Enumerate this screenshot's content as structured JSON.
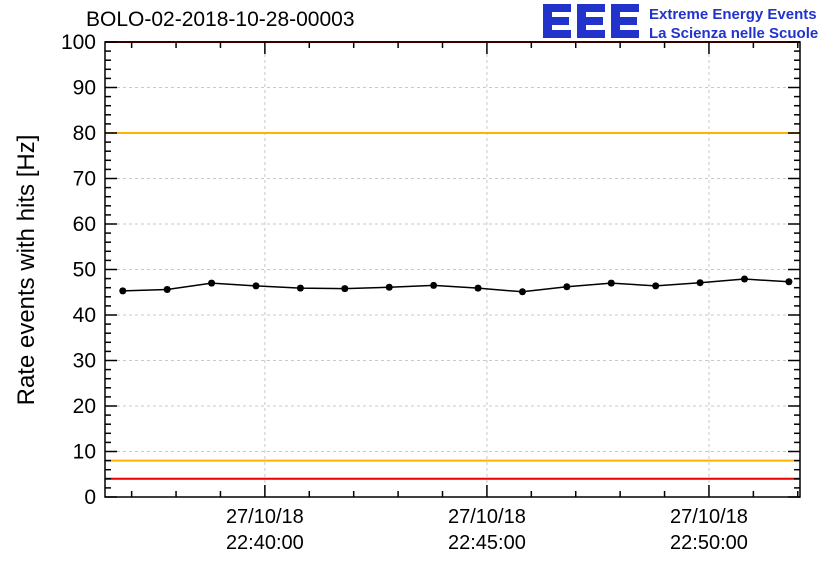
{
  "header": {
    "title": "BOLO-02-2018-10-28-00003"
  },
  "logo": {
    "acronym": "EEE",
    "line1": "Extreme Energy Events",
    "line2": "La Scienza nelle Scuole",
    "color": "#2233cc"
  },
  "chart_data": {
    "type": "line",
    "title": "BOLO-02-2018-10-28-00003",
    "xlabel": "",
    "ylabel": "Rate events with hits [Hz]",
    "ylim": [
      0,
      100
    ],
    "ytick_step": 10,
    "ytick_minor_step": 2,
    "grid": true,
    "grid_color": "#c8c8c8",
    "frame_color": "#000000",
    "x_axis": {
      "range_minutes": [
        0,
        15.65
      ],
      "major_ticks": [
        {
          "minute": 3.6,
          "label_date": "27/10/18",
          "label_time": "22:40:00"
        },
        {
          "minute": 8.6,
          "label_date": "27/10/18",
          "label_time": "22:45:00"
        },
        {
          "minute": 13.6,
          "label_date": "27/10/18",
          "label_time": "22:50:00"
        }
      ],
      "minor_tick_start": 0.6,
      "minor_tick_step": 1
    },
    "series": [
      {
        "name": "rate-events-with-hits",
        "color": "#000000",
        "marker": "circle",
        "points": [
          {
            "minute": 0.4,
            "hz": 45.3,
            "err": 0.5
          },
          {
            "minute": 1.4,
            "hz": 45.6,
            "err": 0.5
          },
          {
            "minute": 2.4,
            "hz": 47.0,
            "err": 0.5
          },
          {
            "minute": 3.4,
            "hz": 46.4,
            "err": 0.5
          },
          {
            "minute": 4.4,
            "hz": 45.9,
            "err": 0.5
          },
          {
            "minute": 5.4,
            "hz": 45.8,
            "err": 0.5
          },
          {
            "minute": 6.4,
            "hz": 46.1,
            "err": 0.5
          },
          {
            "minute": 7.4,
            "hz": 46.5,
            "err": 0.5
          },
          {
            "minute": 8.4,
            "hz": 45.9,
            "err": 0.5
          },
          {
            "minute": 9.4,
            "hz": 45.1,
            "err": 0.5
          },
          {
            "minute": 10.4,
            "hz": 46.2,
            "err": 0.5
          },
          {
            "minute": 11.4,
            "hz": 47.0,
            "err": 0.5
          },
          {
            "minute": 12.4,
            "hz": 46.4,
            "err": 0.5
          },
          {
            "minute": 13.4,
            "hz": 47.1,
            "err": 0.5
          },
          {
            "minute": 14.4,
            "hz": 47.9,
            "err": 0.5
          },
          {
            "minute": 15.4,
            "hz": 47.3,
            "err": 0.5
          }
        ]
      }
    ],
    "reference_lines": [
      {
        "hz": 100,
        "color": "#e60000",
        "meaning": "upper-alarm"
      },
      {
        "hz": 80,
        "color": "#ffb300",
        "meaning": "upper-warning"
      },
      {
        "hz": 8,
        "color": "#ffb300",
        "meaning": "lower-warning"
      },
      {
        "hz": 4,
        "color": "#e60000",
        "meaning": "lower-alarm"
      }
    ]
  }
}
